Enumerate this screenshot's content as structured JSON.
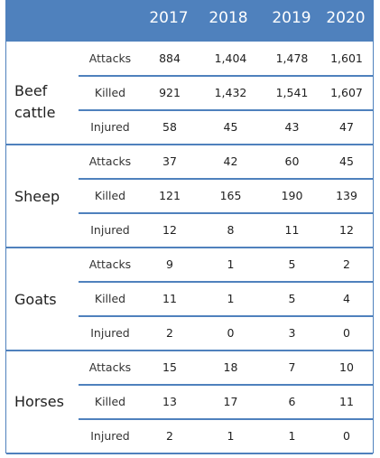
{
  "years": [
    "2017",
    "2018",
    "2019",
    "2020"
  ],
  "groups": [
    {
      "label": "Beef cattle",
      "rows": [
        {
          "metric": "Attacks",
          "values": [
            "884",
            "1,404",
            "1,478",
            "1,601"
          ]
        },
        {
          "metric": "Killed",
          "values": [
            "921",
            "1,432",
            "1,541",
            "1,607"
          ]
        },
        {
          "metric": "Injured",
          "values": [
            "58",
            "45",
            "43",
            "47"
          ]
        }
      ]
    },
    {
      "label": "Sheep",
      "rows": [
        {
          "metric": "Attacks",
          "values": [
            "37",
            "42",
            "60",
            "45"
          ]
        },
        {
          "metric": "Killed",
          "values": [
            "121",
            "165",
            "190",
            "139"
          ]
        },
        {
          "metric": "Injured",
          "values": [
            "12",
            "8",
            "11",
            "12"
          ]
        }
      ]
    },
    {
      "label": "Goats",
      "rows": [
        {
          "metric": "Attacks",
          "values": [
            "9",
            "1",
            "5",
            "2"
          ]
        },
        {
          "metric": "Killed",
          "values": [
            "11",
            "1",
            "5",
            "4"
          ]
        },
        {
          "metric": "Injured",
          "values": [
            "2",
            "0",
            "3",
            "0"
          ]
        }
      ]
    },
    {
      "label": "Horses",
      "rows": [
        {
          "metric": "Attacks",
          "values": [
            "15",
            "18",
            "7",
            "10"
          ]
        },
        {
          "metric": "Killed",
          "values": [
            "13",
            "17",
            "6",
            "11"
          ]
        },
        {
          "metric": "Injured",
          "values": [
            "2",
            "1",
            "1",
            "0"
          ]
        }
      ]
    }
  ],
  "colors": {
    "header": "#4f81bd",
    "rule": "#4f81bd",
    "header_text": "#ffffff"
  }
}
